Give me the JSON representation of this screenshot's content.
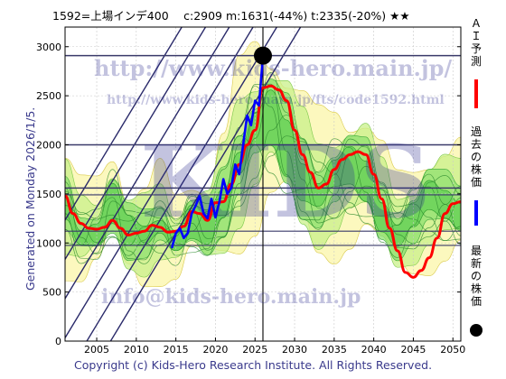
{
  "header": {
    "title": "1592=上場インデ400　 c:2909  m:1631(-44%)  t:2335(-20%)  ★★"
  },
  "side_label": "Generated on Monday 2026/1/5.",
  "footer": "Copyright (c) Kids-Hero Research Institute. All Rights Reserved.",
  "watermarks": {
    "url_main": "http://www.kids-hero.main.jp/",
    "url_page": "http://www.kids-hero.main.jp/fts/code1592.html",
    "email": "info@kids-hero.main.jp",
    "logo": "KIDS"
  },
  "legend": [
    {
      "label": "ＡＩ予測",
      "color": "#ff0000",
      "marker": "line"
    },
    {
      "label": "過去の株価",
      "color": "#0000ff",
      "marker": "line"
    },
    {
      "label": "最新の株価",
      "color": "#000000",
      "marker": "dot"
    }
  ],
  "chart_data": {
    "type": "line",
    "title": "",
    "xlabel": "",
    "ylabel": "",
    "xlim": [
      2001,
      2051
    ],
    "ylim": [
      0,
      3200
    ],
    "x_ticks": [
      2005,
      2010,
      2015,
      2020,
      2025,
      2030,
      2035,
      2040,
      2045,
      2050
    ],
    "y_ticks": [
      0,
      500,
      1000,
      1500,
      2000,
      2500,
      3000
    ],
    "grid": true,
    "horizontal_levels": [
      2909,
      2000,
      1560,
      1490,
      1120,
      975
    ],
    "vertical_marker_year": 2026.0,
    "latest_point": {
      "x": 2026.0,
      "y": 2909
    },
    "series": [
      {
        "name": "ＡＩ予測",
        "color": "#ff0000",
        "points": [
          [
            2001,
            1480
          ],
          [
            2002,
            1300
          ],
          [
            2003,
            1200
          ],
          [
            2004,
            1150
          ],
          [
            2005,
            1140
          ],
          [
            2006,
            1160
          ],
          [
            2007,
            1230
          ],
          [
            2008,
            1150
          ],
          [
            2009,
            1080
          ],
          [
            2010,
            1100
          ],
          [
            2011,
            1120
          ],
          [
            2012,
            1180
          ],
          [
            2013,
            1160
          ],
          [
            2014,
            1110
          ],
          [
            2015,
            1120
          ],
          [
            2016,
            1170
          ],
          [
            2017,
            1320
          ],
          [
            2018,
            1300
          ],
          [
            2019,
            1230
          ],
          [
            2020,
            1410
          ],
          [
            2021,
            1420
          ],
          [
            2022,
            1600
          ],
          [
            2023,
            1800
          ],
          [
            2024,
            2000
          ],
          [
            2025,
            2150
          ],
          [
            2026,
            2580
          ],
          [
            2027,
            2600
          ],
          [
            2028,
            2560
          ],
          [
            2029,
            2450
          ],
          [
            2030,
            2150
          ],
          [
            2031,
            1900
          ],
          [
            2032,
            1720
          ],
          [
            2033,
            1560
          ],
          [
            2034,
            1600
          ],
          [
            2035,
            1750
          ],
          [
            2036,
            1850
          ],
          [
            2037,
            1900
          ],
          [
            2038,
            1930
          ],
          [
            2039,
            1900
          ],
          [
            2040,
            1700
          ],
          [
            2041,
            1450
          ],
          [
            2042,
            1150
          ],
          [
            2043,
            920
          ],
          [
            2044,
            700
          ],
          [
            2045,
            650
          ],
          [
            2046,
            720
          ],
          [
            2047,
            850
          ],
          [
            2048,
            1050
          ],
          [
            2049,
            1300
          ],
          [
            2050,
            1400
          ],
          [
            2051,
            1420
          ]
        ]
      },
      {
        "name": "過去の株価",
        "color": "#0000ff",
        "points": [
          [
            2014.5,
            950
          ],
          [
            2015.0,
            1100
          ],
          [
            2015.5,
            1150
          ],
          [
            2016.0,
            1050
          ],
          [
            2016.5,
            1100
          ],
          [
            2017.0,
            1300
          ],
          [
            2017.5,
            1380
          ],
          [
            2018.0,
            1480
          ],
          [
            2018.5,
            1300
          ],
          [
            2019.0,
            1250
          ],
          [
            2019.5,
            1450
          ],
          [
            2020.0,
            1260
          ],
          [
            2020.5,
            1420
          ],
          [
            2021.0,
            1650
          ],
          [
            2021.5,
            1500
          ],
          [
            2022.0,
            1560
          ],
          [
            2022.5,
            1800
          ],
          [
            2023.0,
            1700
          ],
          [
            2023.5,
            2000
          ],
          [
            2024.0,
            2300
          ],
          [
            2024.5,
            2200
          ],
          [
            2025.0,
            2450
          ],
          [
            2025.5,
            2400
          ],
          [
            2026.0,
            2909
          ]
        ]
      }
    ],
    "band_levels": [
      [
        2001,
        1300
      ],
      [
        2003,
        1050
      ],
      [
        2005,
        1100
      ],
      [
        2007,
        1400
      ],
      [
        2009,
        1100
      ],
      [
        2011,
        1050
      ],
      [
        2013,
        1150
      ],
      [
        2015,
        1000
      ],
      [
        2017,
        1200
      ],
      [
        2019,
        1150
      ],
      [
        2021,
        1400
      ],
      [
        2023,
        1800
      ],
      [
        2025,
        2100
      ],
      [
        2027,
        2200
      ],
      [
        2029,
        1950
      ],
      [
        2031,
        1650
      ],
      [
        2033,
        1500
      ],
      [
        2035,
        1650
      ],
      [
        2037,
        1700
      ],
      [
        2039,
        1600
      ],
      [
        2041,
        1300
      ],
      [
        2043,
        1100
      ],
      [
        2045,
        1250
      ],
      [
        2047,
        1400
      ],
      [
        2049,
        1350
      ],
      [
        2051,
        1300
      ]
    ]
  }
}
